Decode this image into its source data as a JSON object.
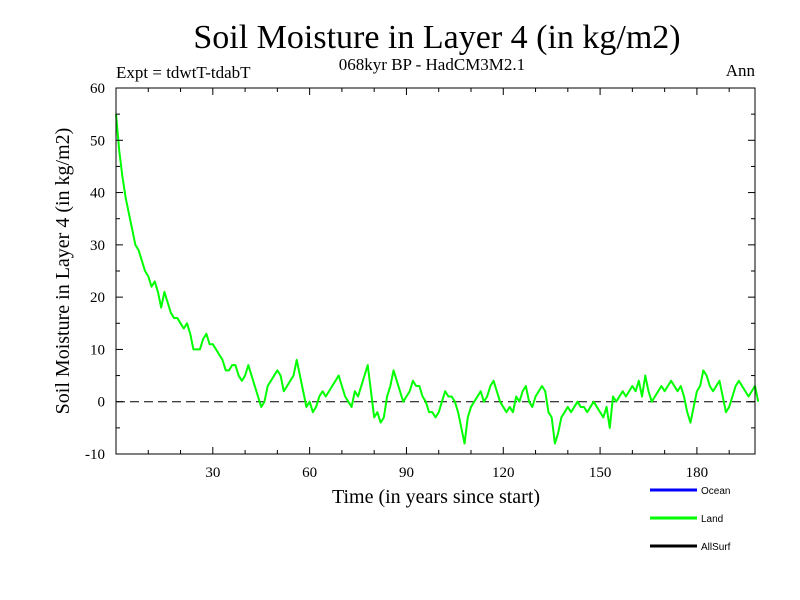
{
  "chart_data": {
    "type": "line",
    "title": "Soil Moisture in Layer 4 (in kg/m2)",
    "subtitle": "068kyr BP - HadCM3M2.1",
    "expt_label": "Expt = tdwtT-tdabT",
    "season_label": "Ann",
    "xlabel": "Time (in years since start)",
    "ylabel": "Soil Moisture in Layer 4 (in kg/m2)",
    "xlim": [
      0,
      198
    ],
    "ylim": [
      -10,
      60
    ],
    "xticks": [
      30,
      60,
      90,
      120,
      150,
      180
    ],
    "yticks": [
      -10,
      0,
      10,
      20,
      30,
      40,
      50,
      60
    ],
    "reference_line": 0,
    "legend": [
      {
        "name": "Ocean",
        "color": "#0000ff"
      },
      {
        "name": "Land",
        "color": "#00ff00"
      },
      {
        "name": "AllSurf",
        "color": "#000000"
      }
    ],
    "series": [
      {
        "name": "Land",
        "color": "#00ff00",
        "x_start": 0,
        "x_step": 1,
        "values": [
          55,
          48,
          43,
          39,
          36,
          33,
          30,
          29,
          27,
          25,
          24,
          22,
          23,
          21,
          18,
          21,
          19,
          17,
          16,
          16,
          15,
          14,
          15,
          13,
          10,
          10,
          10,
          12,
          13,
          11,
          11,
          10,
          9,
          8,
          6,
          6,
          7,
          7,
          5,
          4,
          5,
          7,
          5,
          3,
          1,
          -1,
          0,
          3,
          4,
          5,
          6,
          5,
          2,
          3,
          4,
          5,
          8,
          5,
          2,
          -1,
          0,
          -2,
          -1,
          1,
          2,
          1,
          2,
          3,
          4,
          5,
          3,
          1,
          0,
          -1,
          2,
          1,
          3,
          5,
          7,
          2,
          -3,
          -2,
          -4,
          -3,
          1,
          3,
          6,
          4,
          2,
          0,
          1,
          2,
          4,
          3,
          3,
          1,
          0,
          -2,
          -2,
          -3,
          -2,
          0,
          2,
          1,
          1,
          0,
          -2,
          -5,
          -8,
          -3,
          -1,
          0,
          1,
          2,
          0,
          1,
          3,
          4,
          2,
          0,
          -1,
          -2,
          -1,
          -2,
          1,
          0,
          2,
          3,
          0,
          -1,
          1,
          2,
          3,
          2,
          -2,
          -3,
          -8,
          -6,
          -3,
          -2,
          -1,
          -2,
          -1,
          0,
          -1,
          -1,
          -2,
          -1,
          0,
          -1,
          -2,
          -3,
          -1,
          -5,
          1,
          0,
          1,
          2,
          1,
          2,
          3,
          2,
          4,
          1,
          5,
          2,
          0,
          1,
          2,
          3,
          2,
          3,
          4,
          3,
          2,
          3,
          1,
          -2,
          -4,
          -1,
          2,
          3,
          6,
          5,
          3,
          2,
          3,
          4,
          1,
          -2,
          -1,
          1,
          3,
          4,
          3,
          2,
          1,
          2,
          3,
          0
        ]
      }
    ]
  }
}
